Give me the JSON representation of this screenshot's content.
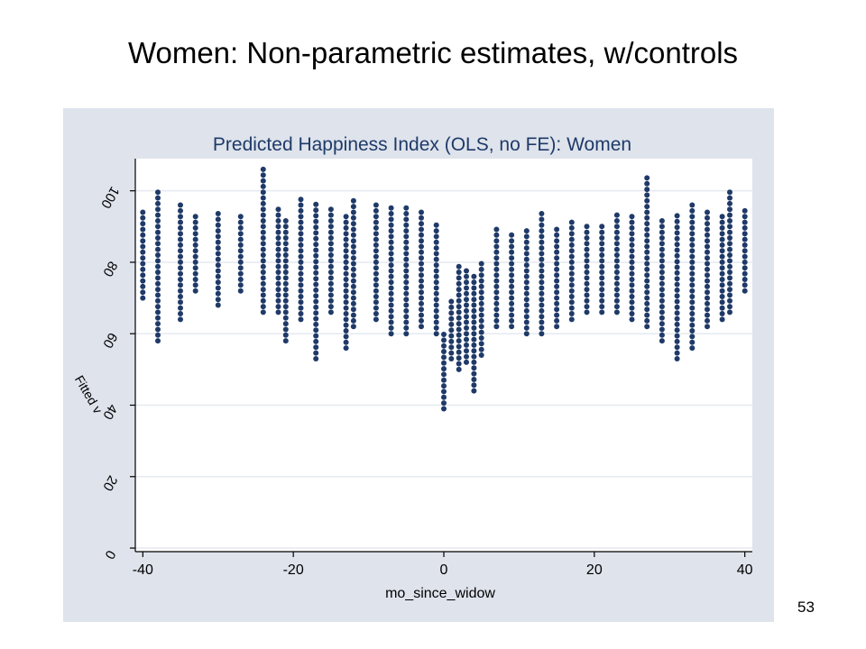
{
  "slide": {
    "title": "Women: Non-parametric estimates, w/controls",
    "page_number": "53"
  },
  "colors": {
    "panel_background": "#dee3ec",
    "plot_background": "#ffffff",
    "marker": "#1f3a68",
    "gridline": "#e6e9f0"
  },
  "chart_data": {
    "type": "scatter",
    "title": "Predicted Happiness Index (OLS, no FE): Women",
    "xlabel": "mo_since_widow",
    "ylabel": "Fitted v",
    "xlim": [
      -41,
      41
    ],
    "ylim": [
      -1,
      109
    ],
    "x_ticks": [
      -40,
      -20,
      0,
      20,
      40
    ],
    "y_ticks": [
      0,
      20,
      40,
      60,
      80,
      100
    ],
    "y_tick_labels_rotated_180": true,
    "grid": true,
    "summary_by_month": [
      {
        "x": -40,
        "y_min": 70,
        "y_max": 95
      },
      {
        "x": -38,
        "y_min": 58,
        "y_max": 100
      },
      {
        "x": -35,
        "y_min": 64,
        "y_max": 96
      },
      {
        "x": -33,
        "y_min": 72,
        "y_max": 94
      },
      {
        "x": -30,
        "y_min": 68,
        "y_max": 94
      },
      {
        "x": -27,
        "y_min": 72,
        "y_max": 94
      },
      {
        "x": -24,
        "y_min": 66,
        "y_max": 107
      },
      {
        "x": -22,
        "y_min": 66,
        "y_max": 96
      },
      {
        "x": -21,
        "y_min": 58,
        "y_max": 92
      },
      {
        "x": -19,
        "y_min": 64,
        "y_max": 98
      },
      {
        "x": -17,
        "y_min": 53,
        "y_max": 97
      },
      {
        "x": -15,
        "y_min": 66,
        "y_max": 95
      },
      {
        "x": -13,
        "y_min": 56,
        "y_max": 94
      },
      {
        "x": -12,
        "y_min": 62,
        "y_max": 98
      },
      {
        "x": -9,
        "y_min": 64,
        "y_max": 96
      },
      {
        "x": -7,
        "y_min": 60,
        "y_max": 96
      },
      {
        "x": -5,
        "y_min": 60,
        "y_max": 96
      },
      {
        "x": -3,
        "y_min": 62,
        "y_max": 95
      },
      {
        "x": -1,
        "y_min": 60,
        "y_max": 91
      },
      {
        "x": 0,
        "y_min": 39,
        "y_max": 60
      },
      {
        "x": 1,
        "y_min": 53,
        "y_max": 70
      },
      {
        "x": 2,
        "y_min": 50,
        "y_max": 80
      },
      {
        "x": 3,
        "y_min": 52,
        "y_max": 78
      },
      {
        "x": 4,
        "y_min": 44,
        "y_max": 76
      },
      {
        "x": 5,
        "y_min": 54,
        "y_max": 80
      },
      {
        "x": 7,
        "y_min": 62,
        "y_max": 90
      },
      {
        "x": 9,
        "y_min": 62,
        "y_max": 88
      },
      {
        "x": 11,
        "y_min": 60,
        "y_max": 90
      },
      {
        "x": 13,
        "y_min": 60,
        "y_max": 94
      },
      {
        "x": 15,
        "y_min": 62,
        "y_max": 90
      },
      {
        "x": 17,
        "y_min": 64,
        "y_max": 92
      },
      {
        "x": 19,
        "y_min": 66,
        "y_max": 90
      },
      {
        "x": 21,
        "y_min": 66,
        "y_max": 90
      },
      {
        "x": 23,
        "y_min": 66,
        "y_max": 94
      },
      {
        "x": 25,
        "y_min": 64,
        "y_max": 93
      },
      {
        "x": 27,
        "y_min": 62,
        "y_max": 104
      },
      {
        "x": 29,
        "y_min": 58,
        "y_max": 92
      },
      {
        "x": 31,
        "y_min": 53,
        "y_max": 94
      },
      {
        "x": 33,
        "y_min": 56,
        "y_max": 97
      },
      {
        "x": 35,
        "y_min": 62,
        "y_max": 94
      },
      {
        "x": 37,
        "y_min": 64,
        "y_max": 93
      },
      {
        "x": 38,
        "y_min": 66,
        "y_max": 100
      },
      {
        "x": 40,
        "y_min": 72,
        "y_max": 95
      }
    ]
  }
}
